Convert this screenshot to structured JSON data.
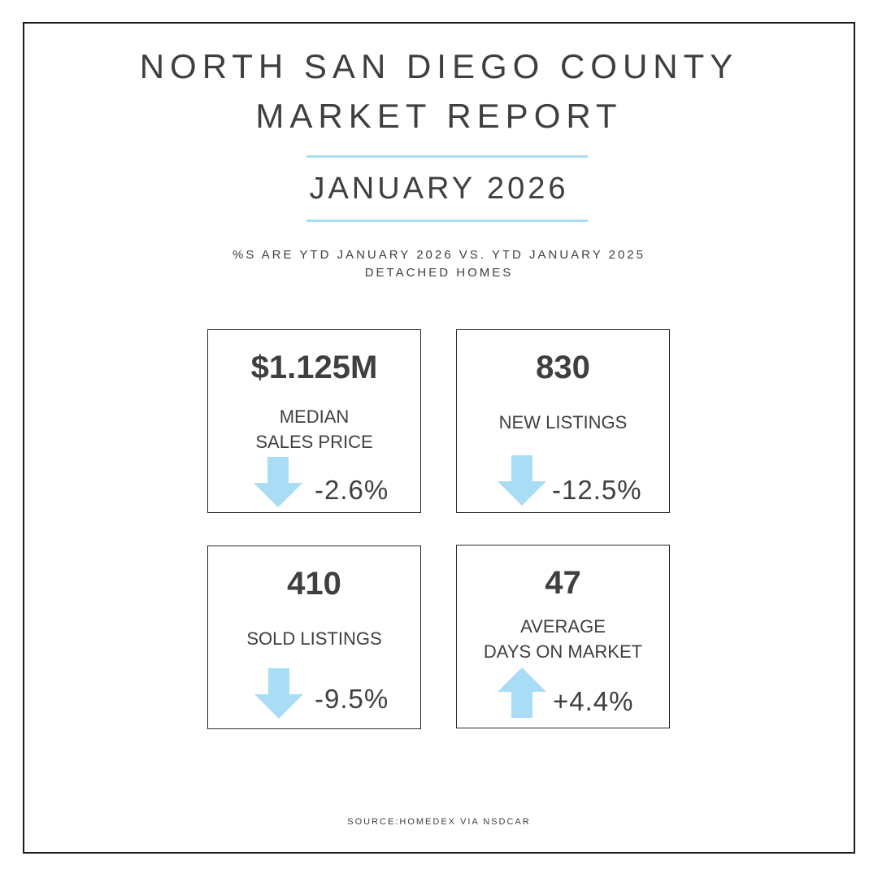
{
  "header": {
    "title_line1": "NORTH SAN DIEGO COUNTY",
    "title_line2": "MARKET REPORT",
    "month": "JANUARY 2026",
    "subtitle_line1": "%S ARE YTD JANUARY 2026 VS. YTD JANUARY 2025",
    "subtitle_line2": "DETACHED HOMES"
  },
  "stats": [
    {
      "value": "$1.125M",
      "label_line1": "MEDIAN",
      "label_line2": "SALES PRICE",
      "direction": "down",
      "change": "-2.6%"
    },
    {
      "value": "830",
      "label": "NEW LISTINGS",
      "direction": "down",
      "change": "-12.5%"
    },
    {
      "value": "410",
      "label": "SOLD LISTINGS",
      "direction": "down",
      "change": "-9.5%"
    },
    {
      "value": "47",
      "label_line1": "AVERAGE",
      "label_line2": "DAYS ON MARKET",
      "direction": "up",
      "change": "+4.4%"
    }
  ],
  "footer": {
    "source": "SOURCE:HOMEDEX VIA NSDCAR"
  },
  "colors": {
    "accent": "#a9dcf5",
    "arrow": "#a9dcf5",
    "text": "#3f3f3f",
    "border": "#1a1a1a"
  }
}
